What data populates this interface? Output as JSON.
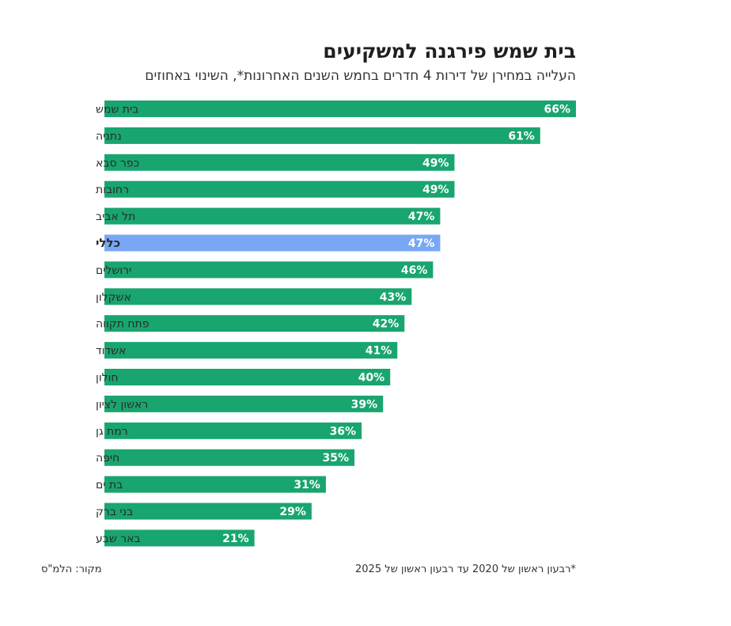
{
  "header": {
    "title": "בית שמש פירגנה למשקיעים",
    "subtitle": "העלייה במחירן של דירות 4 חדרים בחמש השנים האחרונות*, השינוי באחוזים"
  },
  "footer": {
    "footnote": "*רבעון ראשון של 2020 עד רבעון ראשון של 2025",
    "source": "מקור: הלמ\"ס"
  },
  "colors": {
    "bar": "#19a56f",
    "highlight_bar": "#78a8f5",
    "label_text": "#ffffff"
  },
  "chart_data": {
    "type": "bar",
    "orientation": "horizontal",
    "title": "בית שמש פירגנה למשקיעים",
    "subtitle": "העלייה במחירן של דירות 4 חדרים בחמש השנים האחרונות*, השינוי באחוזים",
    "categories": [
      "בית שמש",
      "נתניה",
      "כפר סבא",
      "רחובות",
      "תל אביב",
      "כללי",
      "ירושלים",
      "אשקלון",
      "פתח תקווה",
      "אשדוד",
      "חולון",
      "ראשון לציון",
      "רמת גן",
      "חיפה",
      "בת ים",
      "בני ברק",
      "באר שבע"
    ],
    "values": [
      66,
      61,
      49,
      49,
      47,
      47,
      46,
      43,
      42,
      41,
      40,
      39,
      36,
      35,
      31,
      29,
      21
    ],
    "value_labels": [
      "66%",
      "61%",
      "49%",
      "49%",
      "47%",
      "47%",
      "46%",
      "43%",
      "42%",
      "41%",
      "40%",
      "39%",
      "36%",
      "35%",
      "31%",
      "29%",
      "21%"
    ],
    "highlight": "כללי",
    "unit": "%",
    "grid": false,
    "legend": "none"
  }
}
